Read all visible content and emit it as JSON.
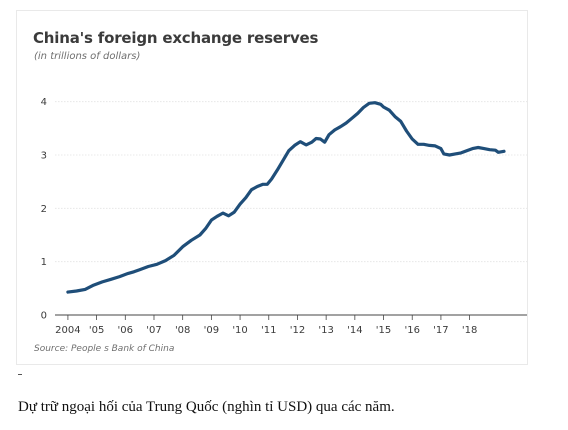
{
  "chart_data": {
    "type": "line",
    "title": "China's foreign exchange reserves",
    "subtitle": "(in trillions of dollars)",
    "source": "Source: People s Bank of China",
    "xlabel": "",
    "ylabel": "",
    "xlim": [
      2004,
      2019.2
    ],
    "ylim": [
      0,
      4.2
    ],
    "yticks": [
      0,
      1,
      2,
      3,
      4
    ],
    "xtick_labels": [
      "2004",
      "'05",
      "'06",
      "'07",
      "'08",
      "'09",
      "'10",
      "'11",
      "'12",
      "'13",
      "'14",
      "'15",
      "'16",
      "'17",
      "'18"
    ],
    "xtick_values": [
      2004,
      2005,
      2006,
      2007,
      2008,
      2009,
      2010,
      2011,
      2012,
      2013,
      2014,
      2015,
      2016,
      2017,
      2018
    ],
    "grid": "horizontal",
    "series": [
      {
        "color": "#1f4e79",
        "points": [
          [
            2004.0,
            0.43
          ],
          [
            2004.3,
            0.45
          ],
          [
            2004.6,
            0.48
          ],
          [
            2004.9,
            0.56
          ],
          [
            2005.2,
            0.62
          ],
          [
            2005.5,
            0.67
          ],
          [
            2005.8,
            0.72
          ],
          [
            2006.1,
            0.78
          ],
          [
            2006.3,
            0.81
          ],
          [
            2006.5,
            0.85
          ],
          [
            2006.8,
            0.91
          ],
          [
            2007.1,
            0.95
          ],
          [
            2007.4,
            1.02
          ],
          [
            2007.7,
            1.12
          ],
          [
            2008.0,
            1.28
          ],
          [
            2008.3,
            1.4
          ],
          [
            2008.6,
            1.5
          ],
          [
            2008.8,
            1.62
          ],
          [
            2009.0,
            1.78
          ],
          [
            2009.2,
            1.85
          ],
          [
            2009.4,
            1.91
          ],
          [
            2009.6,
            1.86
          ],
          [
            2009.8,
            1.93
          ],
          [
            2010.0,
            2.08
          ],
          [
            2010.2,
            2.2
          ],
          [
            2010.4,
            2.35
          ],
          [
            2010.6,
            2.41
          ],
          [
            2010.8,
            2.45
          ],
          [
            2010.95,
            2.45
          ],
          [
            2011.1,
            2.55
          ],
          [
            2011.3,
            2.72
          ],
          [
            2011.5,
            2.9
          ],
          [
            2011.7,
            3.08
          ],
          [
            2011.9,
            3.18
          ],
          [
            2012.1,
            3.25
          ],
          [
            2012.3,
            3.19
          ],
          [
            2012.5,
            3.24
          ],
          [
            2012.65,
            3.31
          ],
          [
            2012.8,
            3.3
          ],
          [
            2012.95,
            3.24
          ],
          [
            2013.1,
            3.38
          ],
          [
            2013.3,
            3.47
          ],
          [
            2013.5,
            3.53
          ],
          [
            2013.7,
            3.6
          ],
          [
            2013.9,
            3.69
          ],
          [
            2014.1,
            3.78
          ],
          [
            2014.3,
            3.89
          ],
          [
            2014.5,
            3.97
          ],
          [
            2014.7,
            3.98
          ],
          [
            2014.9,
            3.95
          ],
          [
            2015.0,
            3.9
          ],
          [
            2015.2,
            3.84
          ],
          [
            2015.4,
            3.72
          ],
          [
            2015.6,
            3.63
          ],
          [
            2015.8,
            3.45
          ],
          [
            2016.0,
            3.3
          ],
          [
            2016.2,
            3.2
          ],
          [
            2016.4,
            3.2
          ],
          [
            2016.6,
            3.18
          ],
          [
            2016.8,
            3.17
          ],
          [
            2017.0,
            3.12
          ],
          [
            2017.1,
            3.02
          ],
          [
            2017.3,
            3.0
          ],
          [
            2017.5,
            3.02
          ],
          [
            2017.7,
            3.04
          ],
          [
            2017.9,
            3.08
          ],
          [
            2018.1,
            3.12
          ],
          [
            2018.3,
            3.14
          ],
          [
            2018.5,
            3.12
          ],
          [
            2018.7,
            3.1
          ],
          [
            2018.9,
            3.09
          ],
          [
            2019.0,
            3.05
          ],
          [
            2019.1,
            3.06
          ],
          [
            2019.2,
            3.07
          ]
        ]
      }
    ]
  },
  "caption": "Dự trữ ngoại hối của Trung Quốc (nghìn tỉ USD) qua các năm."
}
